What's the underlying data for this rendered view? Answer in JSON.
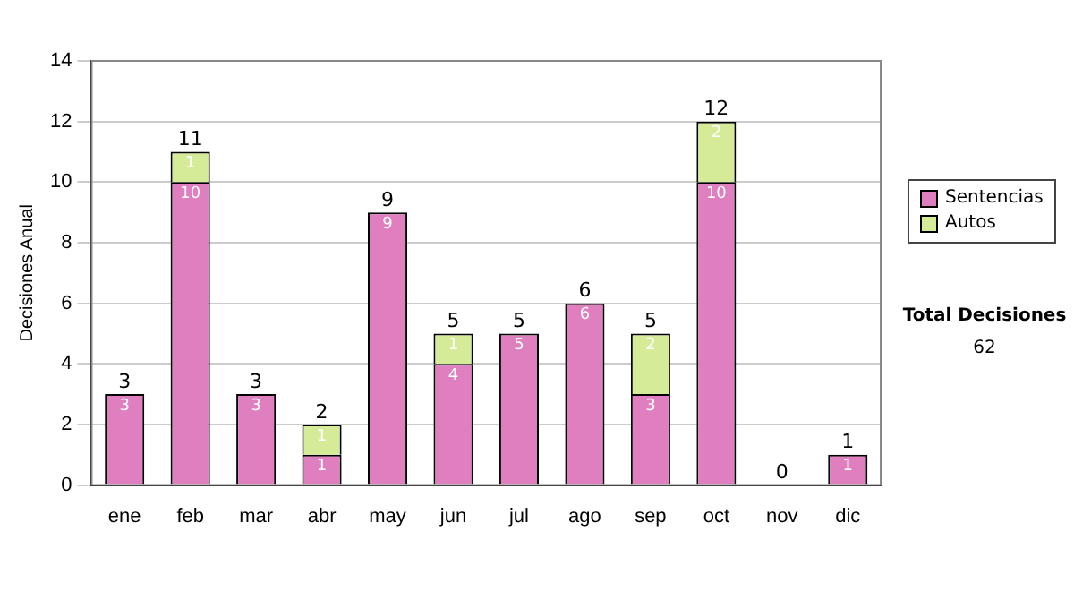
{
  "chart_data": {
    "type": "bar",
    "stacked": true,
    "ylabel": "Decisiones Anual",
    "categories": [
      "ene",
      "feb",
      "mar",
      "abr",
      "may",
      "jun",
      "jul",
      "ago",
      "sep",
      "oct",
      "nov",
      "dic"
    ],
    "series": [
      {
        "name": "Sentencias",
        "color": "#e07fc0",
        "values": [
          3,
          10,
          3,
          1,
          9,
          4,
          5,
          6,
          3,
          10,
          0,
          1
        ],
        "value_labels": [
          "3",
          "10",
          "3",
          "1",
          "9",
          "4",
          "5",
          "6",
          "3",
          "10",
          null,
          "1"
        ]
      },
      {
        "name": "Autos",
        "color": "#d6eb98",
        "values": [
          0,
          1,
          0,
          1,
          0,
          1,
          0,
          0,
          2,
          2,
          0,
          0
        ],
        "value_labels": [
          null,
          "1",
          null,
          "1",
          null,
          "1",
          null,
          null,
          "2",
          "2",
          null,
          null
        ]
      }
    ],
    "totals": [
      "3",
      "11",
      "3",
      "2",
      "9",
      "5",
      "5",
      "6",
      "5",
      "12",
      "0",
      "1"
    ],
    "ylim": [
      0,
      14
    ],
    "yticks": [
      0,
      2,
      4,
      6,
      8,
      10,
      12,
      14
    ],
    "grid": "y",
    "legend": "right",
    "annotations": [
      "Total Decisiones",
      "62"
    ]
  }
}
